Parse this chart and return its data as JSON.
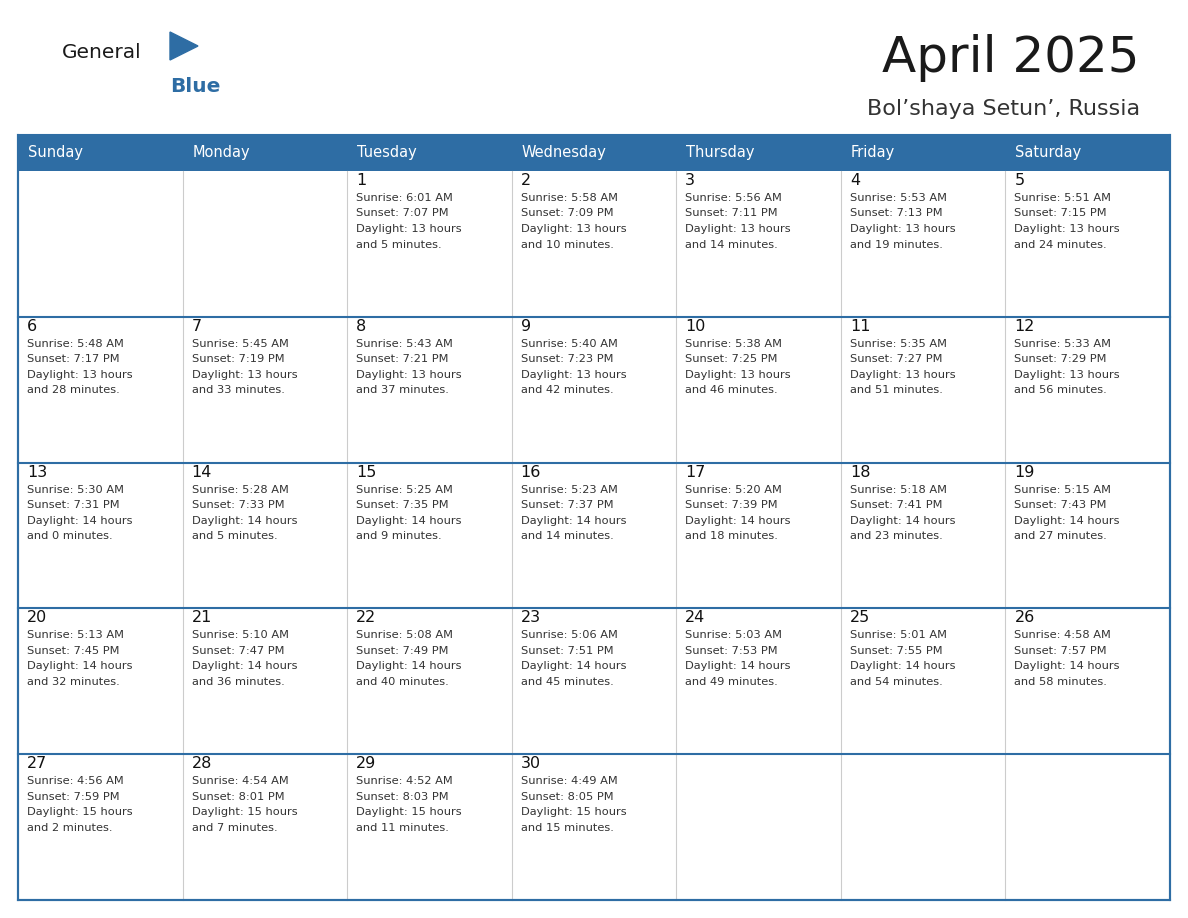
{
  "title": "April 2025",
  "subtitle": "Bol’shaya Setun’, Russia",
  "days_of_week": [
    "Sunday",
    "Monday",
    "Tuesday",
    "Wednesday",
    "Thursday",
    "Friday",
    "Saturday"
  ],
  "header_bg": "#2E6DA4",
  "header_text": "#FFFFFF",
  "cell_bg": "#FFFFFF",
  "cell_bg_alt": "#F5F5F5",
  "row_border_color": "#2E6DA4",
  "col_border_color": "#CCCCCC",
  "title_color": "#1A1A1A",
  "subtitle_color": "#333333",
  "text_color": "#333333",
  "day_num_color": "#111111",
  "logo_general_color": "#1A1A1A",
  "logo_blue_color": "#2E6DA4",
  "calendar": [
    [
      {
        "day": "",
        "info": ""
      },
      {
        "day": "",
        "info": ""
      },
      {
        "day": "1",
        "info": "Sunrise: 6:01 AM\nSunset: 7:07 PM\nDaylight: 13 hours\nand 5 minutes."
      },
      {
        "day": "2",
        "info": "Sunrise: 5:58 AM\nSunset: 7:09 PM\nDaylight: 13 hours\nand 10 minutes."
      },
      {
        "day": "3",
        "info": "Sunrise: 5:56 AM\nSunset: 7:11 PM\nDaylight: 13 hours\nand 14 minutes."
      },
      {
        "day": "4",
        "info": "Sunrise: 5:53 AM\nSunset: 7:13 PM\nDaylight: 13 hours\nand 19 minutes."
      },
      {
        "day": "5",
        "info": "Sunrise: 5:51 AM\nSunset: 7:15 PM\nDaylight: 13 hours\nand 24 minutes."
      }
    ],
    [
      {
        "day": "6",
        "info": "Sunrise: 5:48 AM\nSunset: 7:17 PM\nDaylight: 13 hours\nand 28 minutes."
      },
      {
        "day": "7",
        "info": "Sunrise: 5:45 AM\nSunset: 7:19 PM\nDaylight: 13 hours\nand 33 minutes."
      },
      {
        "day": "8",
        "info": "Sunrise: 5:43 AM\nSunset: 7:21 PM\nDaylight: 13 hours\nand 37 minutes."
      },
      {
        "day": "9",
        "info": "Sunrise: 5:40 AM\nSunset: 7:23 PM\nDaylight: 13 hours\nand 42 minutes."
      },
      {
        "day": "10",
        "info": "Sunrise: 5:38 AM\nSunset: 7:25 PM\nDaylight: 13 hours\nand 46 minutes."
      },
      {
        "day": "11",
        "info": "Sunrise: 5:35 AM\nSunset: 7:27 PM\nDaylight: 13 hours\nand 51 minutes."
      },
      {
        "day": "12",
        "info": "Sunrise: 5:33 AM\nSunset: 7:29 PM\nDaylight: 13 hours\nand 56 minutes."
      }
    ],
    [
      {
        "day": "13",
        "info": "Sunrise: 5:30 AM\nSunset: 7:31 PM\nDaylight: 14 hours\nand 0 minutes."
      },
      {
        "day": "14",
        "info": "Sunrise: 5:28 AM\nSunset: 7:33 PM\nDaylight: 14 hours\nand 5 minutes."
      },
      {
        "day": "15",
        "info": "Sunrise: 5:25 AM\nSunset: 7:35 PM\nDaylight: 14 hours\nand 9 minutes."
      },
      {
        "day": "16",
        "info": "Sunrise: 5:23 AM\nSunset: 7:37 PM\nDaylight: 14 hours\nand 14 minutes."
      },
      {
        "day": "17",
        "info": "Sunrise: 5:20 AM\nSunset: 7:39 PM\nDaylight: 14 hours\nand 18 minutes."
      },
      {
        "day": "18",
        "info": "Sunrise: 5:18 AM\nSunset: 7:41 PM\nDaylight: 14 hours\nand 23 minutes."
      },
      {
        "day": "19",
        "info": "Sunrise: 5:15 AM\nSunset: 7:43 PM\nDaylight: 14 hours\nand 27 minutes."
      }
    ],
    [
      {
        "day": "20",
        "info": "Sunrise: 5:13 AM\nSunset: 7:45 PM\nDaylight: 14 hours\nand 32 minutes."
      },
      {
        "day": "21",
        "info": "Sunrise: 5:10 AM\nSunset: 7:47 PM\nDaylight: 14 hours\nand 36 minutes."
      },
      {
        "day": "22",
        "info": "Sunrise: 5:08 AM\nSunset: 7:49 PM\nDaylight: 14 hours\nand 40 minutes."
      },
      {
        "day": "23",
        "info": "Sunrise: 5:06 AM\nSunset: 7:51 PM\nDaylight: 14 hours\nand 45 minutes."
      },
      {
        "day": "24",
        "info": "Sunrise: 5:03 AM\nSunset: 7:53 PM\nDaylight: 14 hours\nand 49 minutes."
      },
      {
        "day": "25",
        "info": "Sunrise: 5:01 AM\nSunset: 7:55 PM\nDaylight: 14 hours\nand 54 minutes."
      },
      {
        "day": "26",
        "info": "Sunrise: 4:58 AM\nSunset: 7:57 PM\nDaylight: 14 hours\nand 58 minutes."
      }
    ],
    [
      {
        "day": "27",
        "info": "Sunrise: 4:56 AM\nSunset: 7:59 PM\nDaylight: 15 hours\nand 2 minutes."
      },
      {
        "day": "28",
        "info": "Sunrise: 4:54 AM\nSunset: 8:01 PM\nDaylight: 15 hours\nand 7 minutes."
      },
      {
        "day": "29",
        "info": "Sunrise: 4:52 AM\nSunset: 8:03 PM\nDaylight: 15 hours\nand 11 minutes."
      },
      {
        "day": "30",
        "info": "Sunrise: 4:49 AM\nSunset: 8:05 PM\nDaylight: 15 hours\nand 15 minutes."
      },
      {
        "day": "",
        "info": ""
      },
      {
        "day": "",
        "info": ""
      },
      {
        "day": "",
        "info": ""
      }
    ]
  ]
}
